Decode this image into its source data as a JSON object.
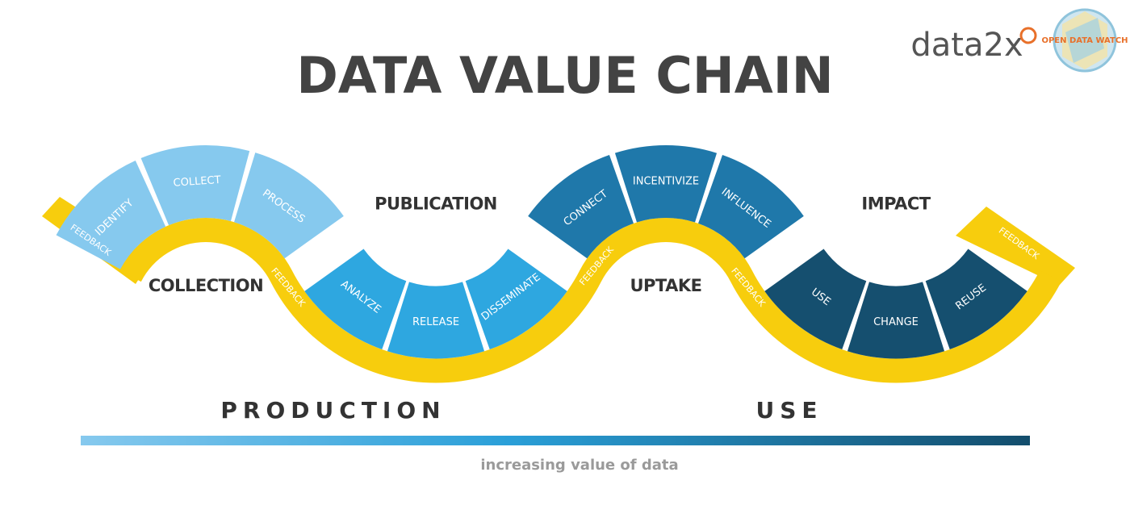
{
  "header": {
    "title": "DATA VALUE CHAIN",
    "logos": [
      "data2x",
      "OPEN DATA WATCH"
    ]
  },
  "stages": [
    {
      "label": "COLLECTION",
      "steps": [
        "IDENTIFY",
        "COLLECT",
        "PROCESS"
      ]
    },
    {
      "label": "PUBLICATION",
      "steps": [
        "ANALYZE",
        "RELEASE",
        "DISSEMINATE"
      ]
    },
    {
      "label": "UPTAKE",
      "steps": [
        "CONNECT",
        "INCENTIVIZE",
        "INFLUENCE"
      ]
    },
    {
      "label": "IMPACT",
      "steps": [
        "USE",
        "CHANGE",
        "REUSE"
      ]
    }
  ],
  "feedback_labels": [
    "FEEDBACK",
    "FEEDBACK",
    "FEEDBACK",
    "FEEDBACK",
    "FEEDBACK"
  ],
  "footer": {
    "phases": [
      "PRODUCTION",
      "USE"
    ],
    "caption": "increasing value of data"
  }
}
